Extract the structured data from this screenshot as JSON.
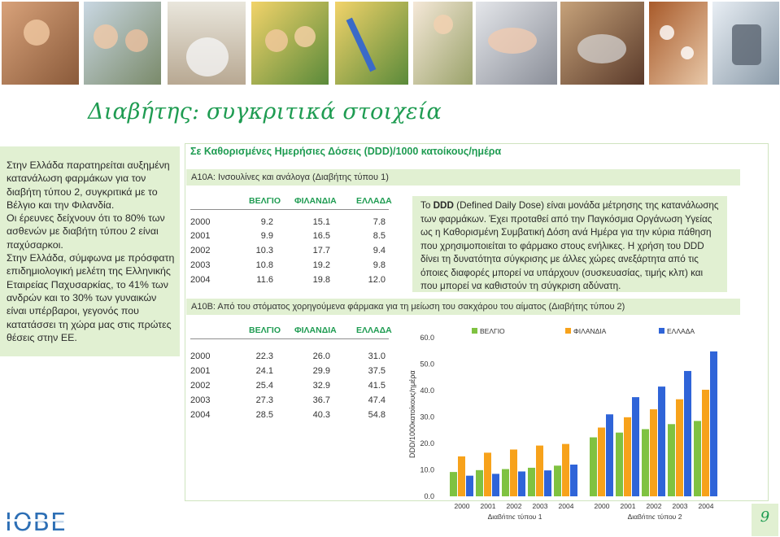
{
  "page_title": "Διαβήτης: συγκριτικά στοιχεία",
  "intro_paragraphs": [
    "Στην Ελλάδα παρατηρείται αυξημένη κατανάλωση φαρμάκων για τον διαβήτη τύπου 2, συγκριτικά με το Βέλγιο και την Φιλανδία.",
    "Οι έρευνες δείχνουν ότι το 80% των ασθενών με διαβήτη τύπου 2 είναι παχύσαρκοι.",
    "Στην Ελλάδα, σύμφωνα με πρόσφατη επιδημιολογική μελέτη της Ελληνικής Εταιρείας Παχυσαρκίας, το 41% των ανδρών και το 30% των γυναικών είναι υπέρβαροι, γεγονός που κατατάσσει τη χώρα μας στις πρώτες θέσεις στην ΕΕ."
  ],
  "unit_heading": "Σε Καθορισμένες Ημερήσιες Δόσεις (DDD)/1000 κατοίκους/ημέρα",
  "table_a": {
    "title": "Α10Α:  Ινσουλίνες και ανάλογα (Διαβήτης τύπου 1)",
    "headers": [
      "ΒΕΛΓΙΟ",
      "ΦΙΛΑΝΔΙΑ",
      "ΕΛΛΑΔΑ"
    ],
    "rows": [
      {
        "year": "2000",
        "v": [
          "9.2",
          "15.1",
          "7.8"
        ]
      },
      {
        "year": "2001",
        "v": [
          "9.9",
          "16.5",
          "8.5"
        ]
      },
      {
        "year": "2002",
        "v": [
          "10.3",
          "17.7",
          "9.4"
        ]
      },
      {
        "year": "2003",
        "v": [
          "10.8",
          "19.2",
          "9.8"
        ]
      },
      {
        "year": "2004",
        "v": [
          "11.6",
          "19.8",
          "12.0"
        ]
      }
    ]
  },
  "table_b": {
    "title": "Α10Β:  Από του στόματος χορηγούμενα φάρμακα για τη μείωση του σακχάρου του αίματος (Διαβήτης τύπου 2)",
    "headers": [
      "ΒΕΛΓΙΟ",
      "ΦΙΛΑΝΔΙΑ",
      "ΕΛΛΑΔΑ"
    ],
    "rows": [
      {
        "year": "2000",
        "v": [
          "22.3",
          "26.0",
          "31.0"
        ]
      },
      {
        "year": "2001",
        "v": [
          "24.1",
          "29.9",
          "37.5"
        ]
      },
      {
        "year": "2002",
        "v": [
          "25.4",
          "32.9",
          "41.5"
        ]
      },
      {
        "year": "2003",
        "v": [
          "27.3",
          "36.7",
          "47.4"
        ]
      },
      {
        "year": "2004",
        "v": [
          "28.5",
          "40.3",
          "54.8"
        ]
      }
    ]
  },
  "ddd_note": {
    "abbr": "DDD",
    "p1": "Το ",
    "p2": " (Defined Daily Dose) είναι μονάδα μέτρησης της κατανάλωσης των φαρμάκων. Έχει προταθεί από την Παγκόσμια Οργάνωση Υγείας ως η Καθορισμένη Συμβατική Δόση ανά Ημέρα για την κύρια πάθηση που χρησιμοποιείται το φάρμακο στους ενήλικες. Η χρήση του ",
    "p3": " δίνει τη δυνατότητα σύγκρισης με άλλες χώρες ανεξάρτητα από τις όποιες διαφορές μπορεί να υπάρχουν (συσκευασίας, τιμής κλπ) και που μπορεί να καθιστούν τη σύγκριση αδύνατη."
  },
  "colors": {
    "green": "#1f9c52",
    "belgium": "#7fc241",
    "finland": "#f7a21b",
    "greece": "#2f64d8",
    "band": "#e1f0d2"
  },
  "chart_data": {
    "type": "bar",
    "ylabel": "DDD/1000κατοίκους/ημέρα",
    "ylim": [
      0,
      60
    ],
    "yticks": [
      "0.0",
      "10.0",
      "20.0",
      "30.0",
      "40.0",
      "50.0",
      "60.0"
    ],
    "legend": [
      "ΒΕΛΓΙΟ",
      "ΦΙΛΑΝΔΙΑ",
      "ΕΛΛΑΔΑ"
    ],
    "legend_position": "top",
    "groups": [
      {
        "label": "Διαβήτης τύπου 1",
        "categories": [
          "2000",
          "2001",
          "2002",
          "2003",
          "2004"
        ],
        "series": [
          {
            "name": "ΒΕΛΓΙΟ",
            "values": [
              9.2,
              9.9,
              10.3,
              10.8,
              11.6
            ]
          },
          {
            "name": "ΦΙΛΑΝΔΙΑ",
            "values": [
              15.1,
              16.5,
              17.7,
              19.2,
              19.8
            ]
          },
          {
            "name": "ΕΛΛΑΔΑ",
            "values": [
              7.8,
              8.5,
              9.4,
              9.8,
              12.0
            ]
          }
        ]
      },
      {
        "label": "Διαβήτης τύπου 2",
        "categories": [
          "2000",
          "2001",
          "2002",
          "2003",
          "2004"
        ],
        "series": [
          {
            "name": "ΒΕΛΓΙΟ",
            "values": [
              22.3,
              24.1,
              25.4,
              27.3,
              28.5
            ]
          },
          {
            "name": "ΦΙΛΑΝΔΙΑ",
            "values": [
              26.0,
              29.9,
              32.9,
              36.7,
              40.3
            ]
          },
          {
            "name": "ΕΛΛΑΔΑ",
            "values": [
              31.0,
              37.5,
              41.5,
              47.4,
              54.8
            ]
          }
        ]
      }
    ]
  },
  "page_number": "9"
}
